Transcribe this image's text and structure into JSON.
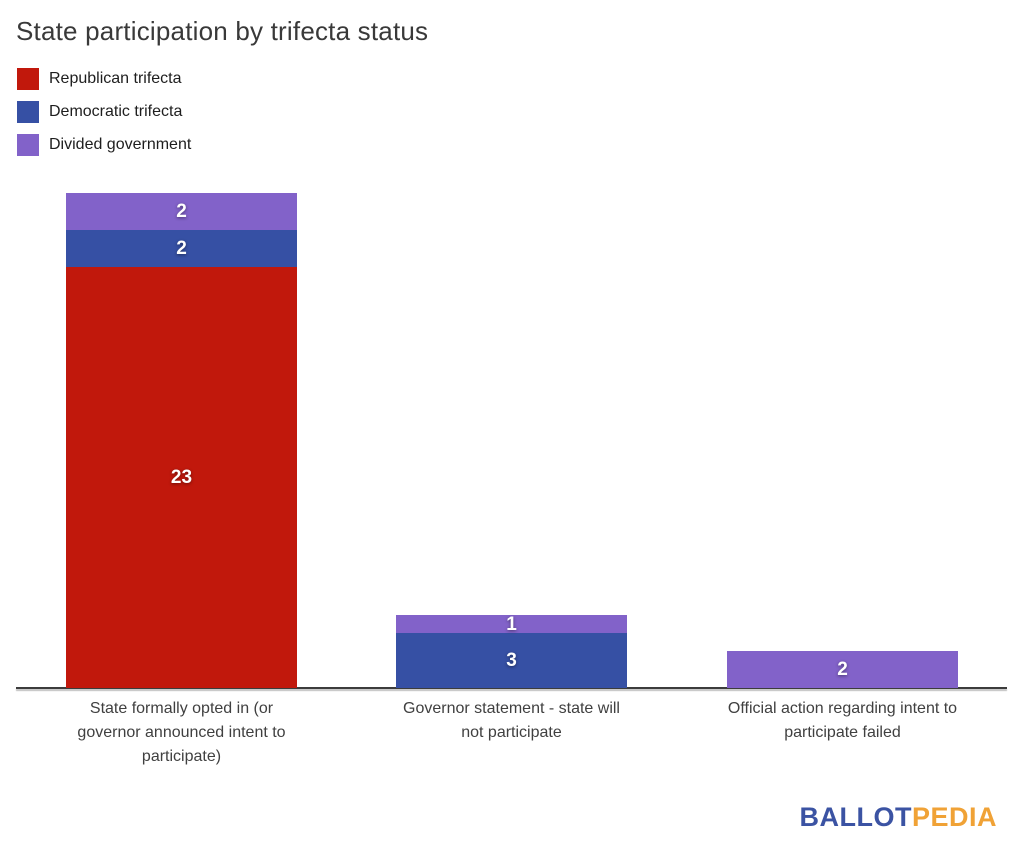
{
  "chart_data": {
    "type": "bar",
    "stacked": true,
    "title": "State participation by trifecta status",
    "categories": [
      "State formally opted in (or governor announced intent to participate)",
      "Governor statement - state will not participate",
      "Official action regarding intent to participate failed"
    ],
    "categories_wrapped": [
      "State formally opted in (or\ngovernor announced intent to\nparticipate)",
      "Governor statement - state will\nnot participate",
      "Official action regarding intent to\nparticipate failed"
    ],
    "series": [
      {
        "name": "Republican trifecta",
        "color": "#c1180c",
        "values": [
          23,
          0,
          0
        ]
      },
      {
        "name": "Democratic trifecta",
        "color": "#3650a4",
        "values": [
          2,
          3,
          0
        ]
      },
      {
        "name": "Divided government",
        "color": "#8262c9",
        "values": [
          2,
          1,
          2
        ]
      }
    ],
    "stack_order_bottom_to_top": [
      "Republican trifecta",
      "Democratic trifecta",
      "Divided government"
    ],
    "totals": [
      27,
      4,
      2
    ],
    "ylim": [
      0,
      27
    ],
    "grid": false,
    "y_axis_labels": false,
    "legend_position": "top-left",
    "value_labels": "white numerals centered inside each segment"
  },
  "footer": {
    "logo": {
      "part1": "BALLOT",
      "part2": "PEDIA",
      "part1_color": "#3b53a3",
      "part2_color": "#f0a236"
    }
  }
}
